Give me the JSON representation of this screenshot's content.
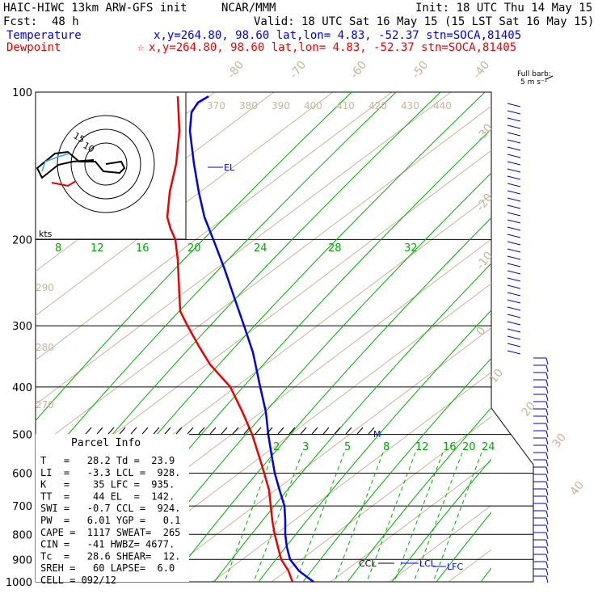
{
  "header": {
    "model": "HAIC-HIWC 13km ARW-GFS init",
    "center": "NCAR/MMM",
    "init": "Init: 18 UTC Thu 14 May 15",
    "fcst_label": "Fcst:",
    "fcst_value": "48 h",
    "valid": "Valid: 18 UTC Sat 16 May 15 (15 LST Sat 16 May 15)",
    "temperature_label": "Temperature",
    "dewpoint_label": "Dewpoint",
    "temp_info": "x,y=264.80, 98.60   lat,lon=  4.83, -52.37  stn=SOCA,81405",
    "dew_info": "x,y=264.80, 98.60   lat,lon=  4.83, -52.37  stn=SOCA,81405",
    "dew_star": "☆"
  },
  "colors": {
    "temperature": "#0000dd",
    "dewpoint": "#ee0000",
    "isotherm": "#c8b49a",
    "dry_adiabat": "#00aa00",
    "mixing_ratio": "#00aa00",
    "isobar": "#000000",
    "wind_barb": "#0000cc",
    "hodograph_temp": "#000000",
    "hodograph_dew": "#ee0000",
    "hodograph_cyan": "#33aadd"
  },
  "chart_data": {
    "type": "line",
    "title": "",
    "pressure_levels": [
      100,
      200,
      300,
      400,
      500,
      600,
      700,
      800,
      900,
      1000
    ],
    "isotherm_labels": [
      "-80",
      "-70",
      "-60",
      "-50",
      "-40",
      "-30",
      "-20",
      "-10",
      "0",
      "10",
      "20",
      "30",
      "40"
    ],
    "theta_e_labels": [
      "370",
      "380",
      "390",
      "400",
      "410",
      "420",
      "430",
      "440"
    ],
    "dry_adiabat_labels": [
      "290",
      "280",
      "270"
    ],
    "moist_labels": [
      "8",
      "12",
      "16",
      "20",
      "24",
      "28",
      "32"
    ],
    "moist_units": "kts",
    "mixing_ratio_labels": [
      "2",
      "3",
      "5",
      "8",
      "12",
      "16",
      "20",
      "24"
    ],
    "series": [
      {
        "name": "Temperature",
        "points": [
          [
            102,
            258
          ],
          [
            105,
            245
          ],
          [
            110,
            237
          ],
          [
            120,
            235
          ],
          [
            140,
            240
          ],
          [
            160,
            246
          ],
          [
            180,
            253
          ],
          [
            200,
            264
          ],
          [
            230,
            278
          ],
          [
            260,
            289
          ],
          [
            300,
            302
          ],
          [
            340,
            313
          ],
          [
            400,
            322
          ],
          [
            450,
            329
          ],
          [
            500,
            332
          ],
          [
            550,
            336
          ],
          [
            600,
            340
          ],
          [
            650,
            346
          ],
          [
            700,
            352
          ],
          [
            750,
            353
          ],
          [
            800,
            353
          ],
          [
            850,
            355
          ],
          [
            900,
            359
          ],
          [
            950,
            370
          ],
          [
            1000,
            388
          ]
        ]
      },
      {
        "name": "Dewpoint",
        "points": [
          [
            102,
            220
          ],
          [
            120,
            222
          ],
          [
            140,
            218
          ],
          [
            160,
            210
          ],
          [
            180,
            207
          ],
          [
            190,
            211
          ],
          [
            200,
            217
          ],
          [
            220,
            220
          ],
          [
            240,
            221
          ],
          [
            260,
            222
          ],
          [
            280,
            223
          ],
          [
            300,
            232
          ],
          [
            330,
            246
          ],
          [
            360,
            260
          ],
          [
            400,
            285
          ],
          [
            450,
            300
          ],
          [
            500,
            312
          ],
          [
            550,
            320
          ],
          [
            600,
            327
          ],
          [
            650,
            333
          ],
          [
            700,
            335
          ],
          [
            750,
            337
          ],
          [
            800,
            340
          ],
          [
            850,
            344
          ],
          [
            900,
            348
          ],
          [
            950,
            357
          ],
          [
            1000,
            362
          ]
        ]
      }
    ],
    "labels": {
      "el": "EL",
      "m": "M",
      "ccl": "CCL",
      "lcl": "LCL",
      "lfc": "LFC"
    },
    "wind_barbs_title": "Full barb:",
    "wind_barbs_units": "5 m s⁻¹"
  },
  "parcel_info": {
    "title": "Parcel Info",
    "rows": [
      "T   =   28.2 Td =  23.9",
      "LI  =   -3.3 LCL =  928.",
      "K   =    35 LFC =  935.",
      "TT  =    44 EL  =  142.",
      "SWI =   -0.7 CCL =  924.",
      "PW  =   6.01 YGP =   0.1",
      "CAPE =  1117 SWEAT=  265",
      "CIN =   -41 HWBZ= 4677.",
      "Tc  =   28.6 SHEAR=  12.",
      "SREH =   60 LAPSE=  6.0",
      "CELL = 092/12"
    ]
  },
  "hodograph": {
    "ring_labels": [
      "15",
      "10"
    ]
  }
}
